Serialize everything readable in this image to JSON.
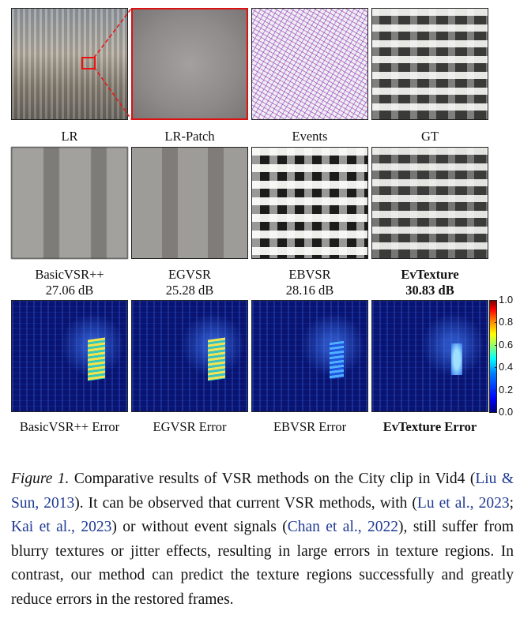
{
  "figure": {
    "panels_row1": [
      {
        "label": "LR"
      },
      {
        "label": "LR-Patch"
      },
      {
        "label": "Events"
      },
      {
        "label": "GT"
      }
    ],
    "panels_row2": [
      {
        "label": "BasicVSR++",
        "psnr": "27.06 dB"
      },
      {
        "label": "EGVSR",
        "psnr": "25.28 dB"
      },
      {
        "label": "EBVSR",
        "psnr": "28.16 dB"
      },
      {
        "label": "EvTexture",
        "psnr": "30.83 dB"
      }
    ],
    "panels_row3": [
      {
        "label": "BasicVSR++ Error"
      },
      {
        "label": "EGVSR Error"
      },
      {
        "label": "EBVSR Error"
      },
      {
        "label": "EvTexture Error"
      }
    ],
    "colorbar": {
      "ticks": [
        "1.0",
        "0.8",
        "0.6",
        "0.4",
        "0.2",
        "0.0"
      ]
    }
  },
  "caption": {
    "lead": "Figure 1.",
    "part1": " Comparative results of VSR methods on the City clip in Vid4 (",
    "cite1": "Liu & Sun, 2013",
    "part2": "). It can be observed that current VSR methods, with (",
    "cite2": "Lu et al., 2023",
    "part3": "; ",
    "cite3": "Kai et al., 2023",
    "part4": ") or without event signals (",
    "cite4": "Chan et al., 2022",
    "part5": "), still suffer from blurry textures or jitter effects, resulting in large errors in texture regions. In contrast, our method can predict the texture regions successfully and greatly reduce errors in the restored frames."
  }
}
